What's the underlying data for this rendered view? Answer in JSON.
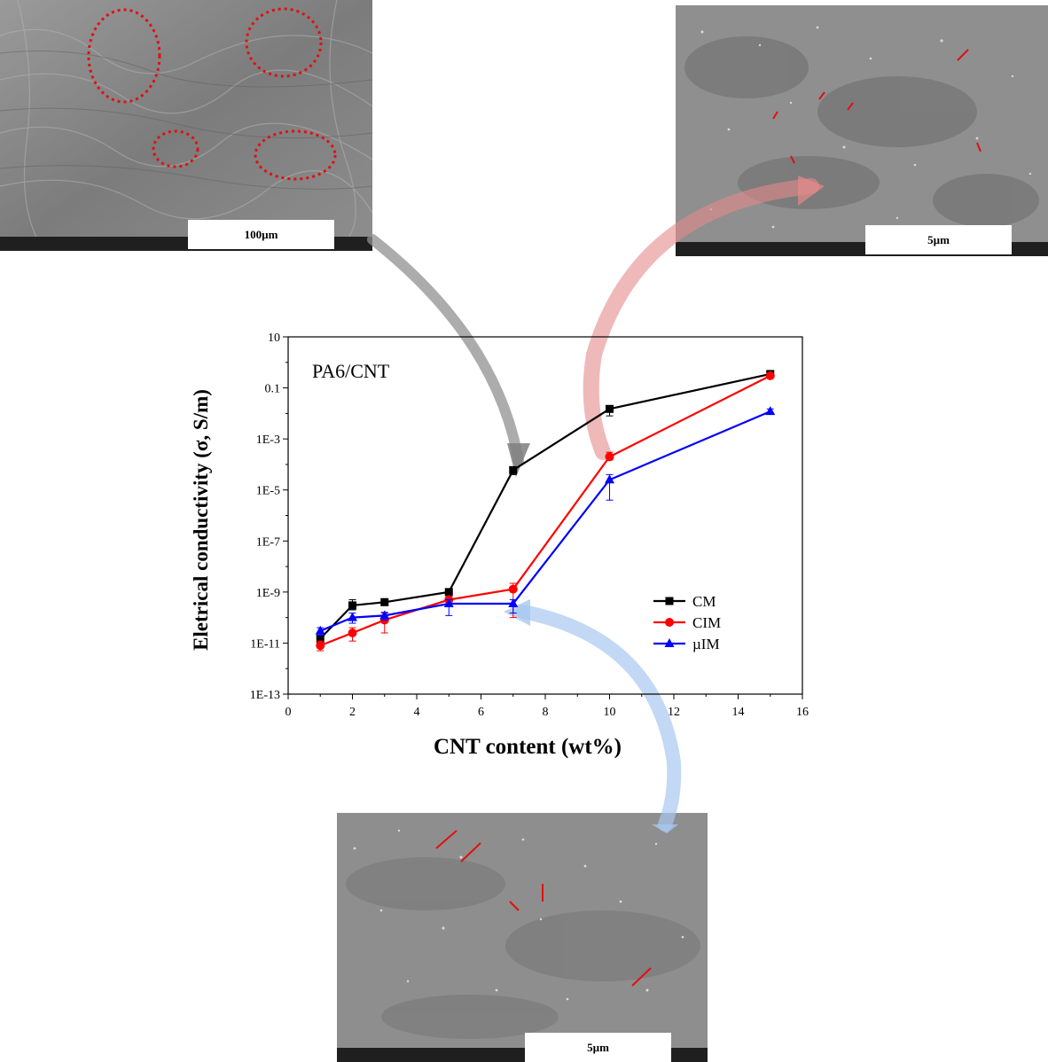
{
  "micrographs": {
    "top_left": {
      "scale_label": "100µm"
    },
    "top_right": {
      "scale_label": "5µm"
    },
    "bottom": {
      "scale_label": "5µm"
    }
  },
  "chart_data": {
    "type": "line",
    "annotation": "PA6/CNT",
    "xlabel": "CNT content (wt%)",
    "ylabel": "Eletrical conductivity (σ, S/m)",
    "xlim": [
      0,
      16
    ],
    "ylim_log10": [
      -13,
      1
    ],
    "yscale": "log",
    "x_ticks": [
      0,
      2,
      4,
      6,
      8,
      10,
      12,
      14,
      16
    ],
    "y_ticks": [
      {
        "label": "10",
        "value": 10
      },
      {
        "label": "0.1",
        "value": 0.1
      },
      {
        "label": "1E-3",
        "value": 0.001
      },
      {
        "label": "1E-5",
        "value": 1e-05
      },
      {
        "label": "1E-7",
        "value": 1e-07
      },
      {
        "label": "1E-9",
        "value": 1e-09
      },
      {
        "label": "1E-11",
        "value": 1e-11
      },
      {
        "label": "1E-13",
        "value": 1e-13
      }
    ],
    "legend_position": "lower-right",
    "series": [
      {
        "name": "CM",
        "color": "#000000",
        "marker": "square",
        "x": [
          1,
          2,
          3,
          5,
          7,
          10,
          15
        ],
        "y": [
          1.5e-11,
          3e-10,
          4e-10,
          1e-09,
          6e-05,
          0.015,
          0.35
        ],
        "err_low": [
          1e-11,
          2e-10,
          3e-10,
          8e-10,
          4e-05,
          0.008,
          0.3
        ],
        "err_high": [
          2e-11,
          5e-10,
          5.5e-10,
          1.2e-09,
          8e-05,
          0.02,
          0.4
        ]
      },
      {
        "name": "CIM",
        "color": "#ff0000",
        "marker": "circle",
        "x": [
          1,
          2,
          3,
          5,
          7,
          10,
          15
        ],
        "y": [
          8e-12,
          2.5e-11,
          8e-11,
          5e-10,
          1.3e-09,
          0.0002,
          0.3
        ],
        "err_low": [
          5e-12,
          1.2e-11,
          2.5e-11,
          3e-10,
          1e-10,
          0.00015,
          0.25
        ],
        "err_high": [
          1.2e-11,
          4e-11,
          1.5e-10,
          7e-10,
          2.2e-09,
          0.0003,
          0.35
        ]
      },
      {
        "name": "µIM",
        "color": "#0000ff",
        "marker": "triangle",
        "x": [
          1,
          2,
          3,
          5,
          7,
          10,
          15
        ],
        "y": [
          3e-11,
          1e-10,
          1.2e-10,
          3.5e-10,
          3.5e-10,
          2.5e-05,
          0.012
        ],
        "err_low": [
          2e-11,
          6e-11,
          8e-11,
          1.2e-10,
          1.5e-10,
          4e-06,
          0.01
        ],
        "err_high": [
          4e-11,
          1.5e-10,
          1.6e-10,
          5e-10,
          5e-10,
          4e-05,
          0.015
        ]
      }
    ]
  }
}
